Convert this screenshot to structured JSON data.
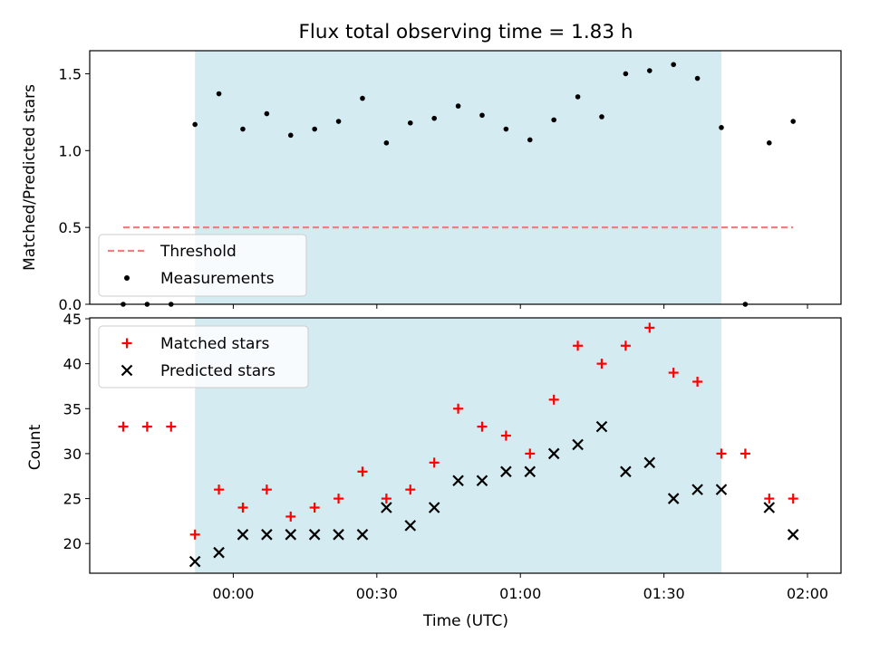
{
  "figure_title": "Flux total observing time = 1.83 h",
  "colors": {
    "band": "#add8e6",
    "threshold": "#f08080",
    "measurement": "#000000",
    "matched": "#ff0000",
    "predicted": "#000000"
  },
  "chart_data": [
    {
      "type": "scatter",
      "title": "Flux total observing time = 1.83 h",
      "xlabel": "",
      "ylabel": "Matched/Predicted stars",
      "ylim": [
        0.0,
        1.65
      ],
      "y_ticks": [
        "0.0",
        "0.5",
        "1.0",
        "1.5"
      ],
      "x_range_min": [
        -30,
        127
      ],
      "observing_window_min": [
        -8,
        102
      ],
      "threshold": {
        "value": 0.5,
        "x_range_min": [
          -23,
          117
        ]
      },
      "legend_position": "lower-left",
      "legend": {
        "threshold_label": "Threshold",
        "measurement_label": "Measurements"
      },
      "series": [
        {
          "name": "Measurements",
          "x_min": [
            -23,
            -18,
            -13,
            -8,
            -3,
            2,
            7,
            12,
            17,
            22,
            27,
            32,
            37,
            42,
            47,
            52,
            57,
            62,
            67,
            72,
            77,
            82,
            87,
            92,
            97,
            102,
            107,
            112,
            117
          ],
          "values": [
            0.0,
            0.0,
            0.0,
            1.17,
            1.37,
            1.14,
            1.24,
            1.1,
            1.14,
            1.19,
            1.34,
            1.05,
            1.18,
            1.21,
            1.29,
            1.23,
            1.14,
            1.07,
            1.2,
            1.35,
            1.22,
            1.5,
            1.52,
            1.56,
            1.47,
            1.15,
            0.0,
            1.05,
            1.19
          ]
        }
      ]
    },
    {
      "type": "scatter",
      "title": "",
      "xlabel": "Time (UTC)",
      "ylabel": "Count",
      "ylim": [
        16.7,
        45.1
      ],
      "y_ticks": [
        "20",
        "25",
        "30",
        "35",
        "40",
        "45"
      ],
      "x_ticks": [
        {
          "t": 0,
          "label": "00:00"
        },
        {
          "t": 30,
          "label": "00:30"
        },
        {
          "t": 60,
          "label": "01:00"
        },
        {
          "t": 90,
          "label": "01:30"
        },
        {
          "t": 120,
          "label": "02:00"
        }
      ],
      "x_range_min": [
        -30,
        127
      ],
      "observing_window_min": [
        -8,
        102
      ],
      "legend_position": "upper-left",
      "series": [
        {
          "name": "Matched stars",
          "x_min": [
            -23,
            -18,
            -13,
            -8,
            -3,
            2,
            7,
            12,
            17,
            22,
            27,
            32,
            37,
            42,
            47,
            52,
            57,
            62,
            67,
            72,
            77,
            82,
            87,
            92,
            97,
            102,
            107,
            112,
            117
          ],
          "values": [
            33,
            33,
            33,
            21,
            26,
            24,
            26,
            23,
            24,
            25,
            28,
            25,
            26,
            29,
            35,
            33,
            32,
            30,
            36,
            42,
            40,
            42,
            44,
            39,
            38,
            30,
            30,
            25,
            25
          ]
        },
        {
          "name": "Predicted stars",
          "x_min": [
            -8,
            -3,
            2,
            7,
            12,
            17,
            22,
            27,
            32,
            37,
            42,
            47,
            52,
            57,
            62,
            67,
            72,
            77,
            82,
            87,
            92,
            97,
            102,
            112,
            117
          ],
          "values": [
            18,
            19,
            21,
            21,
            21,
            21,
            21,
            21,
            24,
            22,
            24,
            27,
            27,
            28,
            28,
            30,
            31,
            33,
            28,
            29,
            25,
            26,
            26,
            24,
            21
          ]
        }
      ]
    }
  ]
}
